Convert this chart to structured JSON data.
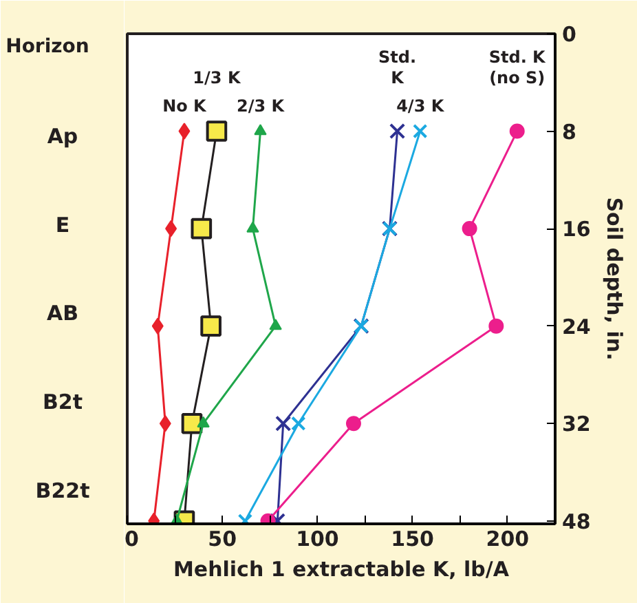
{
  "chart_data": {
    "type": "line",
    "orientation": "horizontal",
    "xlabel": "Mehlich 1 extractable K, lb/A",
    "ylabel": "Soil depth, in.",
    "categories": [
      "0",
      "8",
      "16",
      "24",
      "32",
      "48"
    ],
    "xlim": [
      0,
      225
    ],
    "xticks": [
      0,
      {
        "value": 25,
        "label": null
      },
      50,
      {
        "value": 75,
        "label": null
      },
      100,
      {
        "value": 125,
        "label": null
      },
      150,
      {
        "value": 175,
        "label": null
      },
      200
    ],
    "grid": false,
    "legend": false,
    "series": [
      {
        "name": "No K",
        "color": "#e8212b",
        "marker": "diamond",
        "values": [
          null,
          30,
          23,
          16,
          20,
          14
        ]
      },
      {
        "name": "1/3 K",
        "color": "#231f20",
        "marker": "square",
        "values": [
          null,
          47,
          39,
          44,
          34,
          30
        ]
      },
      {
        "name": "2/3 K",
        "color": "#1fa64a",
        "marker": "triangle",
        "values": [
          null,
          70,
          66,
          78,
          40,
          26
        ]
      },
      {
        "name": "Std.\nK",
        "color": "#2e3192",
        "marker": "cross",
        "values": [
          null,
          142,
          138,
          123,
          82,
          79
        ]
      },
      {
        "name": "4/3 K",
        "color": "#1ba9e1",
        "marker": "cross",
        "values": [
          null,
          154,
          138,
          123,
          90,
          62
        ]
      },
      {
        "name": "Std. K\n(no S)",
        "color": "#ec1e8c",
        "marker": "circle",
        "values": [
          null,
          205,
          180,
          194,
          119,
          74
        ]
      }
    ],
    "annotations": [
      "Horizon",
      "Ap",
      "E",
      "AB",
      "B2t",
      "B22t"
    ]
  }
}
